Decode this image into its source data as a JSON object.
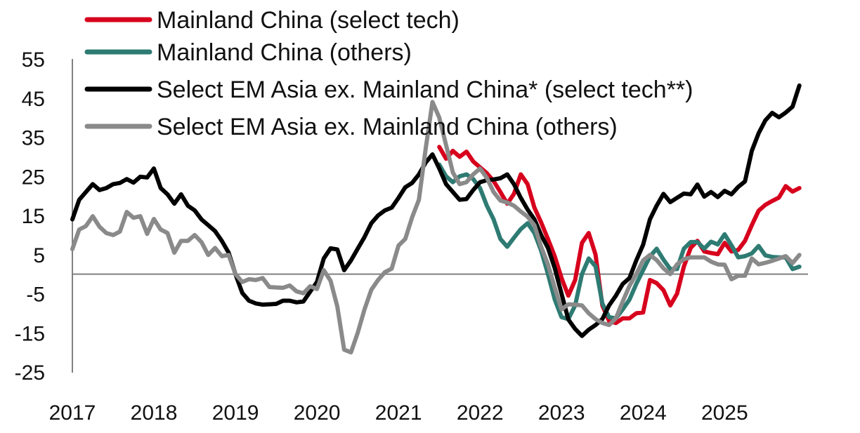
{
  "chart_data": {
    "type": "line",
    "title": "",
    "xlabel": "",
    "ylabel": "",
    "ylim": [
      -25,
      55
    ],
    "yticks": [
      "55",
      "45",
      "35",
      "25",
      "15",
      "5",
      "-5",
      "-15",
      "-25"
    ],
    "ytick_values": [
      55,
      45,
      35,
      25,
      15,
      5,
      -5,
      -15,
      -25
    ],
    "xtick_labels": [
      "2017",
      "2018",
      "2019",
      "2020",
      "2021",
      "2022",
      "2023",
      "2024",
      "2025"
    ],
    "grid": false,
    "zero_line": true,
    "legend_position": "top",
    "x": [
      "2017-01",
      "2017-02",
      "2017-03",
      "2017-04",
      "2017-05",
      "2017-06",
      "2017-07",
      "2017-08",
      "2017-09",
      "2017-10",
      "2017-11",
      "2017-12",
      "2018-01",
      "2018-02",
      "2018-03",
      "2018-04",
      "2018-05",
      "2018-06",
      "2018-07",
      "2018-08",
      "2018-09",
      "2018-10",
      "2018-11",
      "2018-12",
      "2019-01",
      "2019-02",
      "2019-03",
      "2019-04",
      "2019-05",
      "2019-06",
      "2019-07",
      "2019-08",
      "2019-09",
      "2019-10",
      "2019-11",
      "2019-12",
      "2020-01",
      "2020-02",
      "2020-03",
      "2020-04",
      "2020-05",
      "2020-06",
      "2020-07",
      "2020-08",
      "2020-09",
      "2020-10",
      "2020-11",
      "2020-12",
      "2021-01",
      "2021-02",
      "2021-03",
      "2021-04",
      "2021-05",
      "2021-06",
      "2021-07",
      "2021-08",
      "2021-09",
      "2021-10",
      "2021-11",
      "2021-12",
      "2022-01",
      "2022-02",
      "2022-03",
      "2022-04",
      "2022-05",
      "2022-06",
      "2022-07",
      "2022-08",
      "2022-09",
      "2022-10",
      "2022-11",
      "2022-12",
      "2023-01",
      "2023-02",
      "2023-03",
      "2023-04",
      "2023-05",
      "2023-06",
      "2023-07",
      "2023-08",
      "2023-09",
      "2023-10",
      "2023-11",
      "2023-12",
      "2024-01",
      "2024-02",
      "2024-03",
      "2024-04",
      "2024-05",
      "2024-06",
      "2024-07",
      "2024-08",
      "2024-09",
      "2024-10",
      "2024-11",
      "2024-12",
      "2025-01",
      "2025-02",
      "2025-03",
      "2025-04",
      "2025-05",
      "2025-06",
      "2025-07",
      "2025-08",
      "2025-09",
      "2025-10",
      "2025-11",
      "2025-12"
    ],
    "series": [
      {
        "name": "Mainland China (select tech)",
        "color": "#d7001d",
        "values": [
          null,
          null,
          null,
          null,
          null,
          null,
          null,
          null,
          null,
          null,
          null,
          null,
          null,
          null,
          null,
          null,
          null,
          null,
          null,
          null,
          null,
          null,
          null,
          null,
          null,
          null,
          null,
          null,
          null,
          null,
          null,
          null,
          null,
          null,
          null,
          null,
          null,
          null,
          null,
          null,
          null,
          null,
          null,
          null,
          null,
          null,
          null,
          null,
          null,
          null,
          null,
          null,
          null,
          null,
          32.5,
          29.5,
          31.5,
          30,
          31.3,
          28.8,
          27.3,
          25.8,
          23.8,
          21,
          18,
          20.5,
          25.5,
          23,
          17,
          13.2,
          9,
          4.5,
          -1,
          -5.5,
          -1.5,
          8,
          10.5,
          5,
          -8,
          -12,
          -12.5,
          -11.3,
          -11.3,
          -10,
          -9.8,
          -1.5,
          -2.3,
          -4.1,
          -8,
          -5,
          1.9,
          6.7,
          8.5,
          5.8,
          5.4,
          5.1,
          8,
          5.8,
          6.2,
          8.5,
          12.5,
          16.2,
          17.7,
          18.7,
          19.6,
          22.5,
          21.1,
          22
        ]
      },
      {
        "name": "Mainland China (others)",
        "color": "#2e7b73",
        "values": [
          null,
          null,
          null,
          null,
          null,
          null,
          null,
          null,
          null,
          null,
          null,
          null,
          null,
          null,
          null,
          null,
          null,
          null,
          null,
          null,
          null,
          null,
          null,
          null,
          null,
          null,
          null,
          null,
          null,
          null,
          null,
          null,
          null,
          null,
          null,
          null,
          null,
          null,
          null,
          null,
          null,
          null,
          null,
          null,
          null,
          null,
          null,
          null,
          null,
          null,
          null,
          null,
          null,
          null,
          28,
          25,
          23.5,
          25,
          25.5,
          24.3,
          22,
          17.5,
          14,
          9,
          7,
          9.3,
          11.5,
          13,
          10.5,
          6,
          0,
          -6.5,
          -11,
          -11.5,
          -8,
          0,
          4,
          2,
          -7.5,
          -11,
          -11.3,
          -9,
          -6.5,
          -2.5,
          1,
          4.5,
          6.5,
          3.7,
          1.3,
          1.3,
          6.5,
          8.2,
          8.2,
          6.5,
          8.3,
          7.6,
          10.2,
          7.4,
          4.3,
          4.6,
          5.3,
          7.2,
          4.8,
          4.4,
          4.3,
          4.3,
          1.3,
          1.9
        ]
      },
      {
        "name": "Select EM Asia ex. Mainland China* (select tech**)",
        "color": "#000000",
        "values": [
          14,
          19,
          21,
          23,
          21.5,
          22,
          23,
          23.3,
          24.3,
          23.4,
          24.9,
          24.7,
          27,
          22,
          20.4,
          18,
          20.4,
          17.5,
          16.3,
          14,
          12.5,
          11,
          8.5,
          5.5,
          0,
          -4.8,
          -6.8,
          -7.5,
          -7.8,
          -7.7,
          -7.6,
          -6.8,
          -6.8,
          -7.2,
          -7,
          -4.5,
          -2,
          4,
          6.6,
          6.3,
          1,
          3.5,
          6.5,
          9.5,
          13,
          15,
          16.3,
          17,
          19.5,
          22.2,
          23.3,
          25.5,
          28.5,
          30.6,
          27,
          23,
          21,
          19,
          19.2,
          21.5,
          23.5,
          24,
          24.2,
          24.5,
          25.5,
          23,
          19.5,
          16.5,
          14,
          10,
          6.7,
          1.5,
          -5,
          -11.6,
          -14,
          -15.8,
          -14.2,
          -13,
          -11.5,
          -8,
          -5.5,
          -2.5,
          -1,
          3.5,
          7.5,
          14,
          17.5,
          20.5,
          18.4,
          19.5,
          20.6,
          20.4,
          22.9,
          19.8,
          21,
          19.7,
          21.3,
          20.4,
          22.3,
          23.7,
          31.5,
          36,
          39.3,
          41.2,
          40.1,
          41.3,
          42.8,
          48.2
        ]
      },
      {
        "name": "Select EM Asia ex. Mainland China (others)",
        "color": "#8a8a8a",
        "values": [
          6.4,
          11.4,
          12.3,
          14.8,
          12.1,
          10.5,
          10,
          10.9,
          15.9,
          14.4,
          14.8,
          10.3,
          14.1,
          11.4,
          10.5,
          5.5,
          8.5,
          8.5,
          10,
          8.2,
          4.9,
          6.7,
          4.6,
          4.9,
          0,
          -2,
          -1.3,
          -1.5,
          -1,
          -3.3,
          -3.4,
          -3.5,
          -2.9,
          -4.4,
          -4.9,
          -3.1,
          -3.8,
          1,
          -1.7,
          -8.3,
          -19.3,
          -20,
          -15,
          -9,
          -4,
          -1.5,
          0.5,
          1.4,
          7.3,
          9,
          14.5,
          19,
          32,
          44,
          40,
          33,
          26,
          23,
          23.5,
          25.5,
          27,
          24.6,
          21,
          18.8,
          18.3,
          17.5,
          16,
          14.7,
          12.5,
          7,
          2.5,
          -3.5,
          -9,
          -7.7,
          -7.8,
          -8,
          -10,
          -11.5,
          -12.5,
          -13,
          -11.3,
          -7,
          -3,
          0,
          3.5,
          4.9,
          3.6,
          1.5,
          0,
          2.5,
          3.8,
          4.3,
          4.3,
          4.3,
          3.2,
          2.5,
          2.4,
          -1.3,
          -0.4,
          -0.4,
          4,
          2.5,
          2.9,
          3.4,
          4,
          4.6,
          2.8,
          4.9
        ]
      }
    ]
  }
}
